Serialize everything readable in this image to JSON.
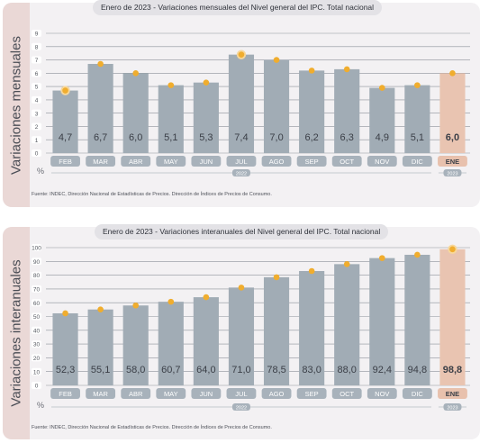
{
  "charts": [
    {
      "side_label": "Variaciones mensuales",
      "title": "Enero de 2023 - Variaciones mensuales del Nivel general del IPC. Total nacional",
      "unit": "%",
      "source": "Fuente: INDEC, Dirección Nacional de Estadísticas de Precios. Dirección de Índices de Precios de Consumo.",
      "year_labels": [
        "2022",
        "2023"
      ]
    },
    {
      "side_label": "Variaciones interanuales",
      "title": "Enero de 2023 - Variaciones interanuales del Nivel general del IPC. Total nacional",
      "unit": "%",
      "source": "Fuente: INDEC, Dirección Nacional de Estadísticas de Precios. Dirección de Índices de Precios de Consumo.",
      "year_labels": [
        "2022",
        "2023"
      ]
    }
  ],
  "colors": {
    "bar": "#a1acb5",
    "bar_highlight": "#e9c4b1",
    "marker": "#f0ad2e",
    "marker_ring": "#f7d79a",
    "grid": "#8e939b",
    "value_text": "#3b3f47",
    "category_pill": "#a8b2bb",
    "category_pill_highlight": "#e8c1ad"
  },
  "chart_data": [
    {
      "type": "bar",
      "title": "Enero de 2023 - Variaciones mensuales del Nivel general del IPC. Total nacional",
      "xlabel": "",
      "ylabel": "Variaciones mensuales",
      "categories": [
        "FEB",
        "MAR",
        "ABR",
        "MAY",
        "JUN",
        "JUL",
        "AGO",
        "SEP",
        "OCT",
        "NOV",
        "DIC",
        "ENE"
      ],
      "values": [
        4.7,
        6.7,
        6.0,
        5.1,
        5.3,
        7.4,
        7.0,
        6.2,
        6.3,
        4.9,
        5.1,
        6.0
      ],
      "value_labels": [
        "4,7",
        "6,7",
        "6,0",
        "5,1",
        "5,3",
        "7,4",
        "7,0",
        "6,2",
        "6,3",
        "4,9",
        "5,1",
        "6,0"
      ],
      "highlight_index": 11,
      "ring_index": [
        0,
        5
      ],
      "ylim": [
        0,
        9
      ],
      "yticks": [
        0,
        1,
        2,
        3,
        4,
        5,
        6,
        7,
        8,
        9
      ],
      "grid": true
    },
    {
      "type": "bar",
      "title": "Enero de 2023 - Variaciones interanuales del Nivel general del IPC. Total nacional",
      "xlabel": "",
      "ylabel": "Variaciones interanuales",
      "categories": [
        "FEB",
        "MAR",
        "ABR",
        "MAY",
        "JUN",
        "JUL",
        "AGO",
        "SEP",
        "OCT",
        "NOV",
        "DIC",
        "ENE"
      ],
      "values": [
        52.3,
        55.1,
        58.0,
        60.7,
        64.0,
        71.0,
        78.5,
        83.0,
        88.0,
        92.4,
        94.8,
        98.8
      ],
      "value_labels": [
        "52,3",
        "55,1",
        "58,0",
        "60,7",
        "64,0",
        "71,0",
        "78,5",
        "83,0",
        "88,0",
        "92,4",
        "94,8",
        "98,8"
      ],
      "highlight_index": 11,
      "ring_index": [
        11
      ],
      "ylim": [
        0,
        100
      ],
      "yticks": [
        0,
        10,
        20,
        30,
        40,
        50,
        60,
        70,
        80,
        90,
        100
      ],
      "grid": true
    }
  ]
}
